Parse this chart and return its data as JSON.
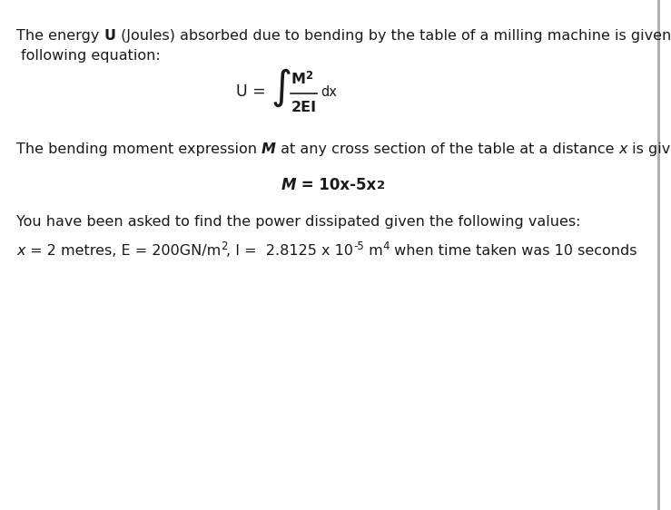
{
  "background_color": "#ffffff",
  "text_color": "#1a1a1a",
  "font_family": "DejaVu Sans",
  "font_size": 11.5,
  "figsize": [
    7.39,
    5.62
  ],
  "dpi": 100,
  "line1_part1": "The energy ",
  "line1_bold": "U",
  "line1_part2": " (Joules) absorbed due to bending by the table of a milling machine is given by",
  "line2": " following equation:",
  "bending_part1": "The bending moment expression ",
  "bending_bold": "M",
  "bending_part2": " at any cross section of the table at a distance ",
  "bending_italic": "x",
  "bending_part3": " is given by :",
  "moment_label": "M",
  "moment_eq": " = 10x-5x",
  "ask_line": "You have been asked to find the power dissipated given the following values:",
  "values_italic": "x",
  "values_rest": " = 2 metres, E = 200GN/m",
  "values_sup1": "2",
  "values_mid": ", I =  2.8125 x 10",
  "values_sup2": "-5",
  "values_end": " m",
  "values_sup3": "4",
  "values_final": " when time taken was 10 seconds"
}
